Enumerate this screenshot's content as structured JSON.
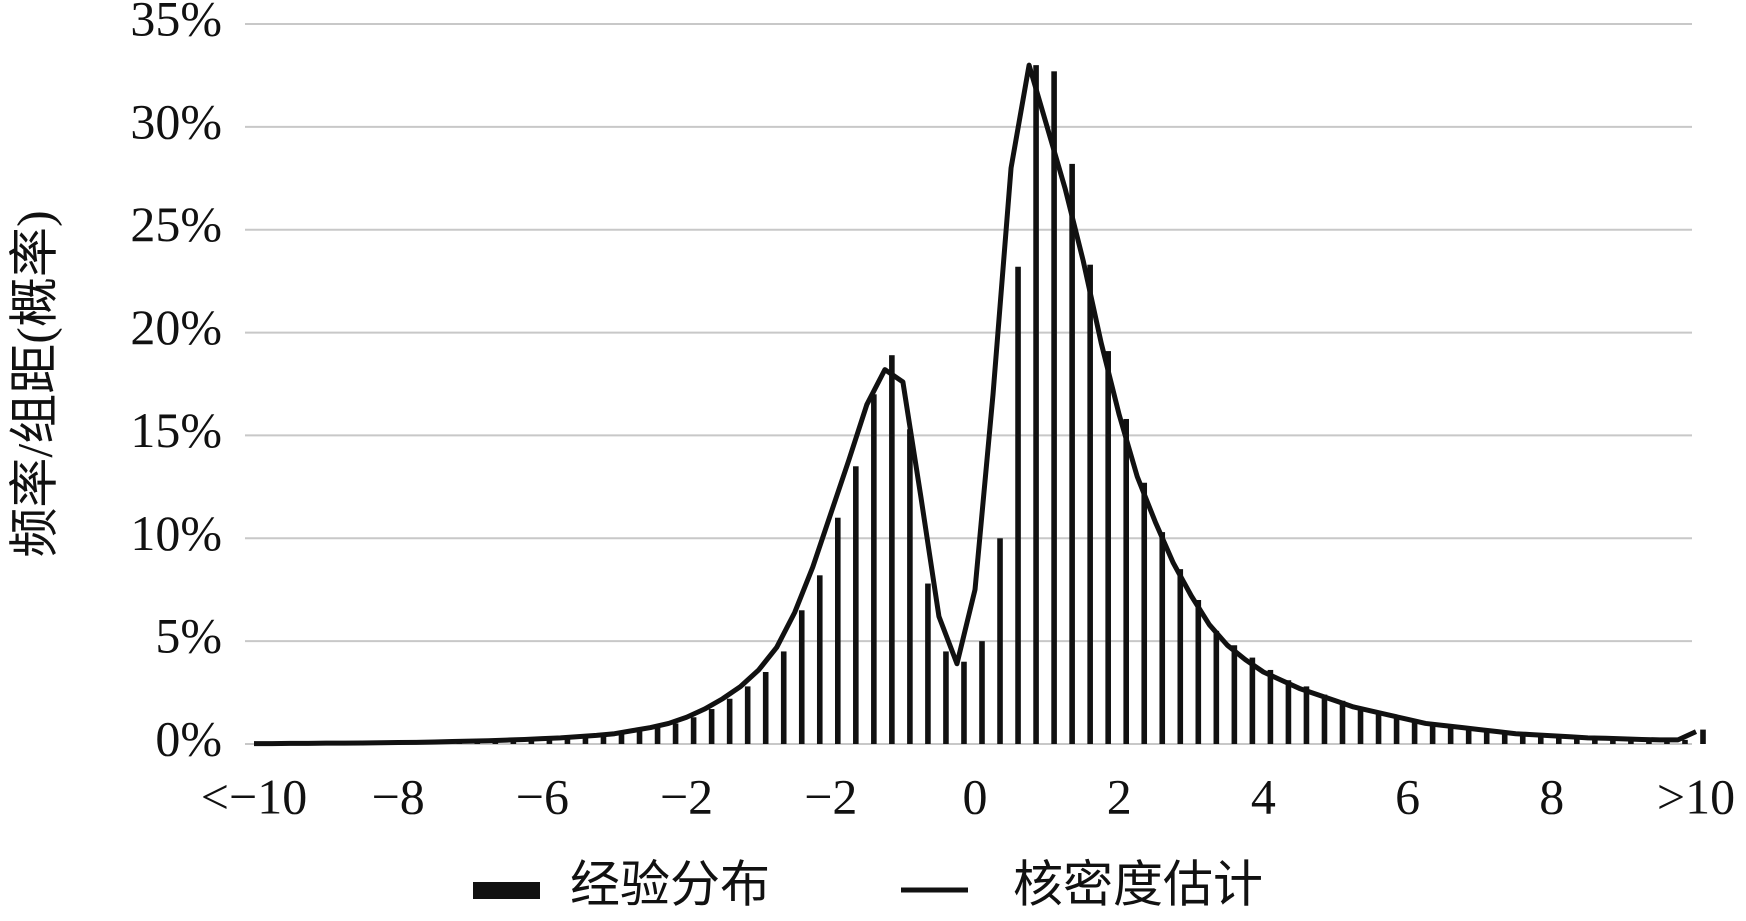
{
  "chart_data": {
    "type": "bar",
    "y_label": "频率/组距(概率)",
    "categories": [
      "<−10",
      null,
      null,
      null,
      null,
      null,
      null,
      null,
      "−8",
      null,
      null,
      null,
      null,
      null,
      null,
      null,
      "−6",
      null,
      null,
      null,
      null,
      null,
      null,
      null,
      "−2",
      null,
      null,
      null,
      null,
      null,
      null,
      null,
      "−2",
      null,
      null,
      null,
      null,
      null,
      null,
      null,
      "0",
      null,
      null,
      null,
      null,
      null,
      null,
      null,
      "2",
      null,
      null,
      null,
      null,
      null,
      null,
      null,
      "4",
      null,
      null,
      null,
      null,
      null,
      null,
      null,
      "6",
      null,
      null,
      null,
      null,
      null,
      null,
      null,
      "8",
      null,
      null,
      null,
      null,
      null,
      null,
      null,
      ">10"
    ],
    "series": [
      {
        "name": "经验分布",
        "type": "bar",
        "color": "#111111",
        "values": [
          0.02,
          0.02,
          0.03,
          0.03,
          0.04,
          0.04,
          0.05,
          0.06,
          0.07,
          0.08,
          0.1,
          0.12,
          0.14,
          0.16,
          0.19,
          0.22,
          0.26,
          0.3,
          0.36,
          0.42,
          0.5,
          0.65,
          0.8,
          1.0,
          1.3,
          1.7,
          2.2,
          2.8,
          3.5,
          4.5,
          6.5,
          8.2,
          11,
          13.5,
          17,
          18.9,
          15.3,
          7.8,
          4.5,
          4,
          5,
          10,
          23.2,
          33,
          32.7,
          28.2,
          23.3,
          19.1,
          15.8,
          12.7,
          10.3,
          8.5,
          7,
          5.5,
          4.8,
          4.2,
          3.6,
          3.1,
          2.8,
          2.4,
          2.1,
          1.8,
          1.6,
          1.4,
          1.2,
          1,
          0.9,
          0.8,
          0.7,
          0.6,
          0.5,
          0.45,
          0.4,
          0.35,
          0.3,
          0.28,
          0.25,
          0.22,
          0.2,
          0.2,
          0.7
        ]
      },
      {
        "name": "核密度估计",
        "type": "line",
        "color": "#111111",
        "values": [
          0.02,
          0.02,
          0.03,
          0.03,
          0.04,
          0.04,
          0.05,
          0.06,
          0.07,
          0.08,
          0.1,
          0.12,
          0.14,
          0.16,
          0.19,
          0.22,
          0.26,
          0.3,
          0.36,
          0.42,
          0.5,
          0.65,
          0.8,
          1.0,
          1.3,
          1.7,
          2.2,
          2.8,
          3.6,
          4.7,
          6.4,
          8.6,
          11.2,
          13.8,
          16.5,
          18.2,
          17.6,
          12,
          6.2,
          3.9,
          7.5,
          17,
          28,
          33,
          30,
          27,
          23.5,
          19.5,
          16,
          13,
          10.8,
          8.8,
          7.2,
          5.8,
          4.8,
          4.1,
          3.5,
          3.1,
          2.7,
          2.4,
          2.1,
          1.8,
          1.6,
          1.4,
          1.2,
          1.0,
          0.9,
          0.8,
          0.7,
          0.6,
          0.5,
          0.45,
          0.4,
          0.35,
          0.3,
          0.28,
          0.25,
          0.22,
          0.2,
          0.2,
          0.6
        ]
      }
    ],
    "ylim": [
      0,
      35
    ],
    "yticks": [
      {
        "value": 0,
        "label": "0%"
      },
      {
        "value": 5,
        "label": "5%"
      },
      {
        "value": 10,
        "label": "10%"
      },
      {
        "value": 15,
        "label": "15%"
      },
      {
        "value": 20,
        "label": "20%"
      },
      {
        "value": 25,
        "label": "25%"
      },
      {
        "value": 30,
        "label": "30%"
      },
      {
        "value": 35,
        "label": "35%"
      }
    ],
    "grid": true
  }
}
